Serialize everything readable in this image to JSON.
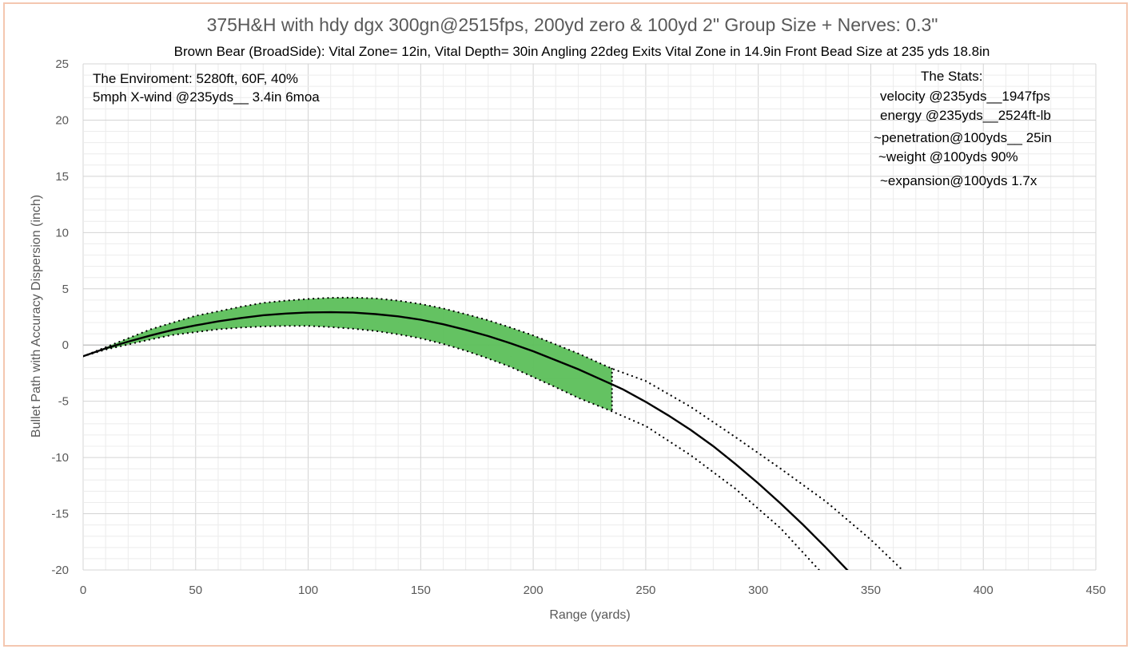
{
  "chart_data": {
    "type": "line",
    "title": "375H&H with hdy dgx 300gn@2515fps, 200yd zero & 100yd  2\" Group Size + Nerves: 0.3\"",
    "subtitle": "Brown Bear (BroadSide): Vital Zone= 12in, Vital Depth= 30in   Angling 22deg Exits Vital Zone in 14.9in    Front Bead Size at 235 yds 18.8in",
    "xlabel": "Range (yards)",
    "ylabel": "Bullet Path with Accuracy Dispersion (inch)",
    "xlim": [
      0,
      450
    ],
    "ylim": [
      -20,
      25
    ],
    "x_ticks": [
      "0",
      "50",
      "100",
      "150",
      "200",
      "250",
      "300",
      "350",
      "400",
      "450"
    ],
    "y_ticks": [
      "25",
      "20",
      "15",
      "10",
      "5",
      "0",
      "-5",
      "-10",
      "-15",
      "-20"
    ],
    "grid": true,
    "shaded_range": [
      0,
      235
    ],
    "shade_color": "#5cbf5a",
    "series": [
      {
        "style": "solid",
        "x": [
          0,
          10,
          20,
          30,
          40,
          50,
          60,
          70,
          80,
          90,
          100,
          110,
          120,
          130,
          140,
          150,
          160,
          170,
          180,
          190,
          200,
          210,
          220,
          230,
          235,
          240,
          250,
          260,
          270,
          280,
          290,
          300,
          310,
          320,
          330,
          340,
          346
        ],
        "y": [
          -1.0,
          -0.3,
          0.3,
          0.85,
          1.35,
          1.75,
          2.1,
          2.4,
          2.65,
          2.8,
          2.9,
          2.92,
          2.88,
          2.75,
          2.55,
          2.25,
          1.85,
          1.35,
          0.8,
          0.15,
          -0.55,
          -1.35,
          -2.15,
          -3.05,
          -3.5,
          -3.95,
          -5.05,
          -6.25,
          -7.55,
          -9.0,
          -10.6,
          -12.3,
          -14.1,
          -16.0,
          -18.0,
          -20.1,
          -21.4
        ]
      },
      {
        "style": "dotted",
        "x": [
          0,
          10,
          20,
          30,
          40,
          50,
          60,
          70,
          80,
          90,
          100,
          110,
          120,
          130,
          140,
          150,
          160,
          170,
          180,
          190,
          200,
          210,
          220,
          230,
          235,
          250,
          270,
          290,
          310,
          330,
          350,
          364
        ],
        "y": [
          -1.0,
          -0.2,
          0.6,
          1.4,
          2.0,
          2.6,
          3.0,
          3.4,
          3.75,
          3.95,
          4.1,
          4.2,
          4.22,
          4.15,
          3.95,
          3.65,
          3.25,
          2.75,
          2.2,
          1.55,
          0.85,
          0.05,
          -0.75,
          -1.65,
          -2.1,
          -3.2,
          -5.5,
          -8.2,
          -11.0,
          -13.9,
          -17.3,
          -20.0
        ]
      },
      {
        "style": "dotted",
        "x": [
          0,
          10,
          20,
          30,
          40,
          50,
          60,
          70,
          80,
          90,
          100,
          110,
          120,
          130,
          140,
          150,
          160,
          170,
          180,
          190,
          200,
          210,
          220,
          230,
          235,
          250,
          270,
          290,
          310,
          327
        ],
        "y": [
          -1.0,
          -0.4,
          0.05,
          0.5,
          0.9,
          1.15,
          1.4,
          1.55,
          1.65,
          1.7,
          1.7,
          1.6,
          1.45,
          1.25,
          0.95,
          0.6,
          0.1,
          -0.5,
          -1.2,
          -1.95,
          -2.85,
          -3.75,
          -4.7,
          -5.5,
          -5.9,
          -7.2,
          -9.8,
          -12.8,
          -16.3,
          -20.0
        ]
      }
    ],
    "annotations": {
      "environment": [
        "The Enviroment: 5280ft, 60F,  40%",
        "5mph X-wind @235yds__ 3.4in 6moa"
      ],
      "stats": [
        "The Stats:",
        "velocity @235yds__1947fps",
        "energy @235yds__2524ft-lb",
        "~penetration@100yds__ 25in",
        "~weight @100yds 90%",
        "~expansion@100yds 1.7x"
      ]
    }
  }
}
